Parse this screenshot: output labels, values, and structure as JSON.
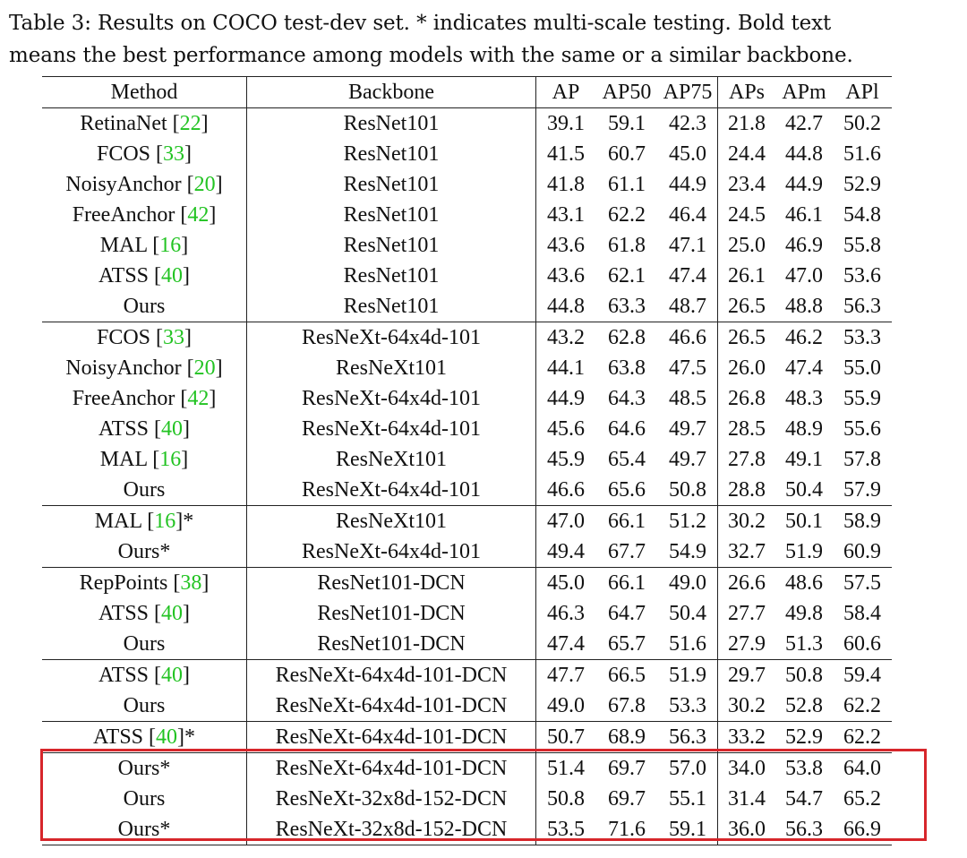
{
  "caption": {
    "line1": "Table 3: Results on COCO test-dev set. * indicates multi-scale testing. Bold text",
    "line2": "means the best performance among models with the same or a similar backbone."
  },
  "table": {
    "headers": [
      "Method",
      "Backbone",
      "AP",
      "AP50",
      "AP75",
      "APs",
      "APm",
      "APl"
    ],
    "rows": [
      {
        "method": "RetinaNet",
        "ref": "22",
        "star": "",
        "backbone": "ResNet101",
        "cells": [
          "39.1",
          "59.1",
          "42.3",
          "21.8",
          "42.7",
          "50.2"
        ],
        "bold": [
          false,
          false,
          false,
          false,
          false,
          false
        ]
      },
      {
        "method": "FCOS",
        "ref": "33",
        "star": "",
        "backbone": "ResNet101",
        "cells": [
          "41.5",
          "60.7",
          "45.0",
          "24.4",
          "44.8",
          "51.6"
        ],
        "bold": [
          false,
          false,
          false,
          false,
          false,
          false
        ]
      },
      {
        "method": "NoisyAnchor",
        "ref": "20",
        "star": "",
        "backbone": "ResNet101",
        "cells": [
          "41.8",
          "61.1",
          "44.9",
          "23.4",
          "44.9",
          "52.9"
        ],
        "bold": [
          false,
          false,
          false,
          false,
          false,
          false
        ]
      },
      {
        "method": "FreeAnchor",
        "ref": "42",
        "star": "",
        "backbone": "ResNet101",
        "cells": [
          "43.1",
          "62.2",
          "46.4",
          "24.5",
          "46.1",
          "54.8"
        ],
        "bold": [
          false,
          false,
          false,
          false,
          false,
          false
        ]
      },
      {
        "method": "MAL",
        "ref": "16",
        "star": "",
        "backbone": "ResNet101",
        "cells": [
          "43.6",
          "61.8",
          "47.1",
          "25.0",
          "46.9",
          "55.8"
        ],
        "bold": [
          false,
          false,
          false,
          false,
          false,
          false
        ]
      },
      {
        "method": "ATSS",
        "ref": "40",
        "star": "",
        "backbone": "ResNet101",
        "cells": [
          "43.6",
          "62.1",
          "47.4",
          "26.1",
          "47.0",
          "53.6"
        ],
        "bold": [
          false,
          false,
          false,
          false,
          false,
          false
        ]
      },
      {
        "method": "Ours",
        "ref": "",
        "star": "",
        "backbone": "ResNet101",
        "cells": [
          "44.8",
          "63.3",
          "48.7",
          "26.5",
          "48.8",
          "56.3"
        ],
        "bold": [
          true,
          true,
          true,
          true,
          true,
          true
        ]
      },
      {
        "method": "FCOS",
        "ref": "33",
        "star": "",
        "backbone": "ResNeXt-64x4d-101",
        "cells": [
          "43.2",
          "62.8",
          "46.6",
          "26.5",
          "46.2",
          "53.3"
        ],
        "bold": [
          false,
          false,
          false,
          false,
          false,
          false
        ]
      },
      {
        "method": "NoisyAnchor",
        "ref": "20",
        "star": "",
        "backbone": "ResNeXt101",
        "cells": [
          "44.1",
          "63.8",
          "47.5",
          "26.0",
          "47.4",
          "55.0"
        ],
        "bold": [
          false,
          false,
          false,
          false,
          false,
          false
        ]
      },
      {
        "method": "FreeAnchor",
        "ref": "42",
        "star": "",
        "backbone": "ResNeXt-64x4d-101",
        "cells": [
          "44.9",
          "64.3",
          "48.5",
          "26.8",
          "48.3",
          "55.9"
        ],
        "bold": [
          false,
          false,
          false,
          false,
          false,
          false
        ]
      },
      {
        "method": "ATSS",
        "ref": "40",
        "star": "",
        "backbone": "ResNeXt-64x4d-101",
        "cells": [
          "45.6",
          "64.6",
          "49.7",
          "28.5",
          "48.9",
          "55.6"
        ],
        "bold": [
          false,
          false,
          false,
          false,
          false,
          false
        ]
      },
      {
        "method": "MAL",
        "ref": "16",
        "star": "",
        "backbone": "ResNeXt101",
        "cells": [
          "45.9",
          "65.4",
          "49.7",
          "27.8",
          "49.1",
          "57.8"
        ],
        "bold": [
          false,
          false,
          false,
          false,
          false,
          false
        ]
      },
      {
        "method": "Ours",
        "ref": "",
        "star": "",
        "backbone": "ResNeXt-64x4d-101",
        "cells": [
          "46.6",
          "65.6",
          "50.8",
          "28.8",
          "50.4",
          "57.9"
        ],
        "bold": [
          true,
          true,
          true,
          true,
          true,
          true
        ]
      },
      {
        "method": "MAL",
        "ref": "16",
        "star": "*",
        "backbone": "ResNeXt101",
        "cells": [
          "47.0",
          "66.1",
          "51.2",
          "30.2",
          "50.1",
          "58.9"
        ],
        "bold": [
          false,
          false,
          false,
          false,
          false,
          false
        ]
      },
      {
        "method": "Ours",
        "ref": "",
        "star": "*",
        "backbone": "ResNeXt-64x4d-101",
        "cells": [
          "49.4",
          "67.7",
          "54.9",
          "32.7",
          "51.9",
          "60.9"
        ],
        "bold": [
          true,
          true,
          true,
          true,
          true,
          true
        ]
      },
      {
        "method": "RepPoints",
        "ref": "38",
        "star": "",
        "backbone": "ResNet101-DCN",
        "cells": [
          "45.0",
          "66.1",
          "49.0",
          "26.6",
          "48.6",
          "57.5"
        ],
        "bold": [
          false,
          true,
          false,
          false,
          false,
          false
        ]
      },
      {
        "method": "ATSS",
        "ref": "40",
        "star": "",
        "backbone": "ResNet101-DCN",
        "cells": [
          "46.3",
          "64.7",
          "50.4",
          "27.7",
          "49.8",
          "58.4"
        ],
        "bold": [
          false,
          false,
          false,
          false,
          false,
          false
        ]
      },
      {
        "method": "Ours",
        "ref": "",
        "star": "",
        "backbone": "ResNet101-DCN",
        "cells": [
          "47.4",
          "65.7",
          "51.6",
          "27.9",
          "51.3",
          "60.6"
        ],
        "bold": [
          true,
          false,
          true,
          true,
          true,
          true
        ]
      },
      {
        "method": "ATSS",
        "ref": "40",
        "star": "",
        "backbone": "ResNeXt-64x4d-101-DCN",
        "cells": [
          "47.7",
          "66.5",
          "51.9",
          "29.7",
          "50.8",
          "59.4"
        ],
        "bold": [
          false,
          false,
          false,
          false,
          false,
          false
        ]
      },
      {
        "method": "Ours",
        "ref": "",
        "star": "",
        "backbone": "ResNeXt-64x4d-101-DCN",
        "cells": [
          "49.0",
          "67.8",
          "53.3",
          "30.2",
          "52.8",
          "62.2"
        ],
        "bold": [
          true,
          true,
          true,
          true,
          true,
          true
        ]
      },
      {
        "method": "ATSS",
        "ref": "40",
        "star": "*",
        "backbone": "ResNeXt-64x4d-101-DCN",
        "cells": [
          "50.7",
          "68.9",
          "56.3",
          "33.2",
          "52.9",
          "62.2"
        ],
        "bold": [
          false,
          false,
          false,
          false,
          false,
          false
        ]
      },
      {
        "method": "Ours",
        "ref": "",
        "star": "*",
        "backbone": "ResNeXt-64x4d-101-DCN",
        "cells": [
          "51.4",
          "69.7",
          "57.0",
          "34.0",
          "53.8",
          "64.0"
        ],
        "bold": [
          true,
          true,
          true,
          true,
          true,
          true
        ]
      },
      {
        "method": "Ours",
        "ref": "",
        "star": "",
        "backbone": "ResNeXt-32x8d-152-DCN",
        "cells": [
          "50.8",
          "69.7",
          "55.1",
          "31.4",
          "54.7",
          "65.2"
        ],
        "bold": [
          true,
          true,
          true,
          true,
          true,
          true
        ]
      },
      {
        "method": "Ours",
        "ref": "",
        "star": "*",
        "backbone": "ResNeXt-32x8d-152-DCN",
        "cells": [
          "53.5",
          "71.6",
          "59.1",
          "36.0",
          "56.3",
          "66.9"
        ],
        "bold": [
          true,
          true,
          true,
          true,
          true,
          true
        ]
      }
    ]
  },
  "highlight_color": "#d7262b",
  "reference_color": "#22c322"
}
